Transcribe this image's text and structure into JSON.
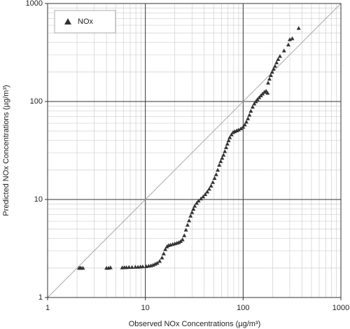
{
  "chart_data": {
    "type": "scatter",
    "x_label": "Observed NOx Concentrations (µg/m³)",
    "y_label": "Predicted NOx Concentrations  (µg/m³)",
    "x": [
      2.1,
      2.15,
      2.2,
      2.3,
      4.0,
      4.2,
      4.4,
      5.8,
      6.1,
      6.4,
      6.8,
      7.3,
      7.9,
      8.4,
      8.9,
      9.4,
      10.2,
      10.8,
      11.4,
      12.0,
      12.6,
      13.2,
      14.0,
      14.8,
      15.4,
      16.0,
      16.6,
      17.2,
      18.0,
      19.0,
      20.0,
      21.0,
      22.0,
      23.0,
      24.0,
      25.0,
      26.0,
      27.0,
      28.0,
      29.0,
      30.0,
      31.0,
      32.0,
      33.5,
      35.0,
      37.0,
      39.0,
      41.0,
      43.0,
      45.0,
      47.0,
      49.0,
      51.0,
      53.0,
      55.0,
      57.0,
      59.0,
      61.0,
      63.0,
      65.0,
      67.0,
      69.0,
      71.0,
      73.0,
      76.0,
      79.0,
      82.0,
      86.0,
      90.0,
      95.0,
      100.0,
      104.0,
      108.0,
      112.0,
      116.0,
      120.0,
      125.0,
      130.0,
      135.0,
      140.0,
      146.0,
      152.0,
      158.0,
      165.0,
      172.0,
      178.0,
      180.0,
      186.0,
      192.0,
      198.0,
      205.0,
      212.0,
      220.0,
      228.0,
      238.0,
      262.0,
      290.0,
      300.0,
      318.0,
      370.0
    ],
    "series": [
      {
        "name": "NOx",
        "color": "#333333",
        "values": [
          2.0,
          2.0,
          2.0,
          2.0,
          2.0,
          2.0,
          2.02,
          2.02,
          2.03,
          2.03,
          2.04,
          2.04,
          2.05,
          2.05,
          2.06,
          2.07,
          2.08,
          2.1,
          2.12,
          2.15,
          2.2,
          2.25,
          2.35,
          2.55,
          2.8,
          3.1,
          3.3,
          3.4,
          3.45,
          3.5,
          3.55,
          3.6,
          3.65,
          3.75,
          3.9,
          4.3,
          4.9,
          5.5,
          6.1,
          6.8,
          7.4,
          8.0,
          8.6,
          9.2,
          9.7,
          10.2,
          10.7,
          11.3,
          12.0,
          12.8,
          13.8,
          15.0,
          16.5,
          18.0,
          20.0,
          22.5,
          24.5,
          26.5,
          28.5,
          31.0,
          34.0,
          37.0,
          40.0,
          43.0,
          46.0,
          48.5,
          49.5,
          50.5,
          51.5,
          53.0,
          55.0,
          58.0,
          62.0,
          67.0,
          73.0,
          80.0,
          88.0,
          95.0,
          100.0,
          105.0,
          110.0,
          115.0,
          120.0,
          125.0,
          128.0,
          122.0,
          155.0,
          170.0,
          185.0,
          200.0,
          215.0,
          230.0,
          250.0,
          270.0,
          290.0,
          330.0,
          380.0,
          430.0,
          440.0,
          560.0
        ]
      }
    ],
    "xlim": [
      1,
      1000
    ],
    "ylim": [
      1,
      1000
    ],
    "xticks": [
      1,
      10,
      100,
      1000
    ],
    "yticks": [
      1,
      10,
      100,
      1000
    ],
    "log_x": true,
    "log_y": true,
    "grid": true,
    "minor_grid": true,
    "identity_line": true,
    "legend": "upper left"
  }
}
